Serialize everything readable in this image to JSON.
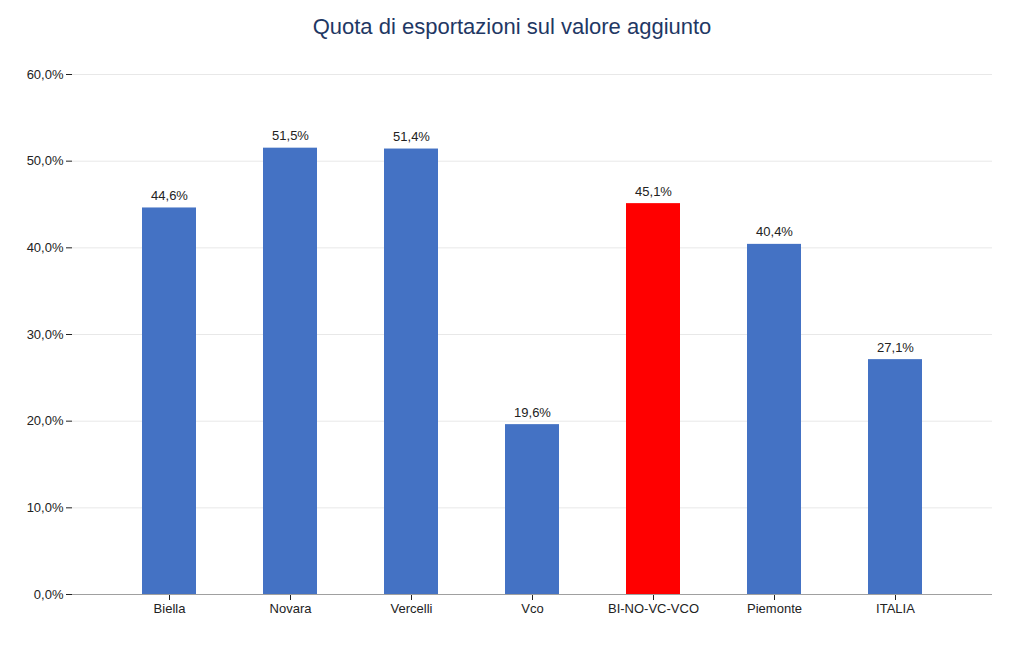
{
  "chart_data": {
    "type": "bar",
    "title": "Quota di esportazioni sul valore aggiunto",
    "categories": [
      "Biella",
      "Novara",
      "Vercelli",
      "Vco",
      "BI-NO-VC-VCO",
      "Piemonte",
      "ITALIA"
    ],
    "values": [
      44.6,
      51.5,
      51.4,
      19.6,
      45.1,
      40.4,
      27.1
    ],
    "value_labels": [
      "44,6%",
      "51,5%",
      "51,4%",
      "19,6%",
      "45,1%",
      "40,4%",
      "27,1%"
    ],
    "colors": [
      "#4472C4",
      "#4472C4",
      "#4472C4",
      "#4472C4",
      "#FF0000",
      "#4472C4",
      "#4472C4"
    ],
    "ylim": [
      0,
      60
    ],
    "yticks": [
      {
        "value": 0,
        "label": "0,0%"
      },
      {
        "value": 10,
        "label": "10,0%"
      },
      {
        "value": 20,
        "label": "20,0%"
      },
      {
        "value": 30,
        "label": "30,0%"
      },
      {
        "value": 40,
        "label": "40,0%"
      },
      {
        "value": 50,
        "label": "50,0%"
      },
      {
        "value": 60,
        "label": "60,0%"
      }
    ],
    "grid": true,
    "data_labels": true
  }
}
